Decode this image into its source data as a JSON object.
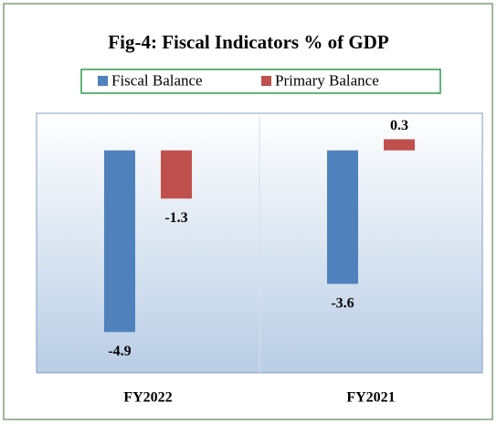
{
  "chart_data": {
    "type": "bar",
    "title": "Fig-4: Fiscal Indicators % of GDP",
    "categories": [
      "FY2022",
      "FY2021"
    ],
    "series": [
      {
        "name": "Fiscal Balance",
        "color": "#4f81bd",
        "values": [
          -4.9,
          -3.6
        ]
      },
      {
        "name": "Primary Balance",
        "color": "#c0504d",
        "values": [
          -1.3,
          0.3
        ]
      }
    ],
    "ylim": [
      -6,
      1
    ]
  }
}
